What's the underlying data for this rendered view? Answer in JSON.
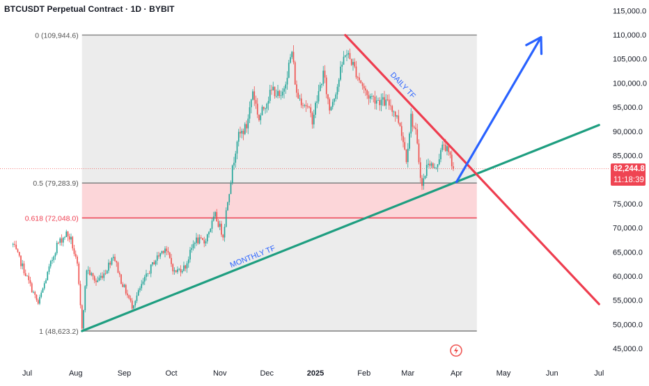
{
  "header": {
    "title": "BTCUSDT Perpetual Contract · 1D · BYBIT"
  },
  "price_badge": {
    "price": "82,244.8",
    "countdown": "11:18:39"
  },
  "colors": {
    "bull": "#26a69a",
    "bear": "#ef5350",
    "trend_green": "#1e9e80",
    "trend_red": "#ee3d4f",
    "arrow_blue": "#2962ff",
    "fib_red": "#ee3d4f",
    "fib_gray": "#888888",
    "box_fill": "#ececec",
    "zone_fill": "#fcd6d9"
  },
  "icons": {
    "alert": "alert-bolt-icon"
  },
  "chart_data": {
    "type": "candlestick",
    "title": "BTCUSDT Perpetual Contract · 1D · BYBIT",
    "ylim": [
      42000,
      117000
    ],
    "y_ticks": [
      "115,000.0",
      "110,000.0",
      "105,000.0",
      "100,000.0",
      "95,000.0",
      "90,000.0",
      "85,000.0",
      "80,000.0",
      "75,000.0",
      "70,000.0",
      "65,000.0",
      "60,000.0",
      "55,000.0",
      "50,000.0",
      "45,000.0"
    ],
    "y_tick_values": [
      115000,
      110000,
      105000,
      100000,
      95000,
      90000,
      85000,
      80000,
      75000,
      70000,
      65000,
      60000,
      55000,
      50000,
      45000
    ],
    "x_ticks": [
      "Jul",
      "Aug",
      "Sep",
      "Oct",
      "Nov",
      "Dec",
      "2025",
      "Feb",
      "Mar",
      "Apr",
      "May",
      "Jun",
      "Jul"
    ],
    "x_tick_dates": [
      "2024-07-01",
      "2024-08-01",
      "2024-09-01",
      "2024-10-01",
      "2024-11-01",
      "2024-12-01",
      "2025-01-01",
      "2025-02-01",
      "2025-03-01",
      "2025-04-01",
      "2025-05-01",
      "2025-06-01",
      "2025-07-01"
    ],
    "fib_levels": [
      {
        "label": "0 (109,944.6)",
        "value": 109944.6
      },
      {
        "label": "0.5 (79,283.9)",
        "value": 79283.9
      },
      {
        "label": "0.618 (72,048.0)",
        "value": 72048.0
      },
      {
        "label": "1 (48,623.2)",
        "value": 48623.2
      }
    ],
    "fib_box": {
      "start": "2024-08-05",
      "end": "2025-04-14"
    },
    "current_price": 82244.8,
    "trendlines": [
      {
        "label": "MONTHLY TF",
        "from": {
          "x": "2024-08-05",
          "y": 48623.2
        },
        "to": {
          "x": "2025-07-01",
          "y": 91300
        }
      },
      {
        "label": "DAILY TF",
        "from": {
          "x": "2025-01-20",
          "y": 109944.6
        },
        "to": {
          "x": "2025-07-01",
          "y": 54200
        }
      }
    ],
    "projection_arrow": {
      "from": {
        "x": "2025-04-01",
        "y": 79500
      },
      "to": {
        "x": "2025-05-25",
        "y": 109500
      }
    },
    "price_path": [
      [
        "2024-06-22",
        66500
      ],
      [
        "2024-06-28",
        62000
      ],
      [
        "2024-07-05",
        56500
      ],
      [
        "2024-07-08",
        54200
      ],
      [
        "2024-07-14",
        60500
      ],
      [
        "2024-07-20",
        66500
      ],
      [
        "2024-07-26",
        68800
      ],
      [
        "2024-07-29",
        67500
      ],
      [
        "2024-08-02",
        62000
      ],
      [
        "2024-08-05",
        49500
      ],
      [
        "2024-08-08",
        61500
      ],
      [
        "2024-08-14",
        58800
      ],
      [
        "2024-08-20",
        61000
      ],
      [
        "2024-08-25",
        64500
      ],
      [
        "2024-08-30",
        59000
      ],
      [
        "2024-09-06",
        53800
      ],
      [
        "2024-09-12",
        58000
      ],
      [
        "2024-09-20",
        63000
      ],
      [
        "2024-09-27",
        66000
      ],
      [
        "2024-10-03",
        60800
      ],
      [
        "2024-10-10",
        62000
      ],
      [
        "2024-10-16",
        67500
      ],
      [
        "2024-10-22",
        67000
      ],
      [
        "2024-10-29",
        72500
      ],
      [
        "2024-11-03",
        68500
      ],
      [
        "2024-11-06",
        75800
      ],
      [
        "2024-11-12",
        88500
      ],
      [
        "2024-11-18",
        91000
      ],
      [
        "2024-11-22",
        98500
      ],
      [
        "2024-11-26",
        92500
      ],
      [
        "2024-12-01",
        96500
      ],
      [
        "2024-12-05",
        98800
      ],
      [
        "2024-12-10",
        96500
      ],
      [
        "2024-12-17",
        106500
      ],
      [
        "2024-12-20",
        97500
      ],
      [
        "2024-12-26",
        95500
      ],
      [
        "2024-12-30",
        92500
      ],
      [
        "2025-01-06",
        102000
      ],
      [
        "2025-01-10",
        94500
      ],
      [
        "2025-01-15",
        99500
      ],
      [
        "2025-01-20",
        106500
      ],
      [
        "2025-01-24",
        104500
      ],
      [
        "2025-01-28",
        101500
      ],
      [
        "2025-02-03",
        97500
      ],
      [
        "2025-02-10",
        96500
      ],
      [
        "2025-02-18",
        95500
      ],
      [
        "2025-02-24",
        91500
      ],
      [
        "2025-02-28",
        84500
      ],
      [
        "2025-03-03",
        93000
      ],
      [
        "2025-03-06",
        89500
      ],
      [
        "2025-03-10",
        78500
      ],
      [
        "2025-03-14",
        84000
      ],
      [
        "2025-03-18",
        82000
      ],
      [
        "2025-03-24",
        87500
      ],
      [
        "2025-03-28",
        84500
      ],
      [
        "2025-03-30",
        82244.8
      ]
    ]
  },
  "annotations": {
    "monthly_label": "MONTHLY TF",
    "daily_label": "DAILY TF"
  }
}
